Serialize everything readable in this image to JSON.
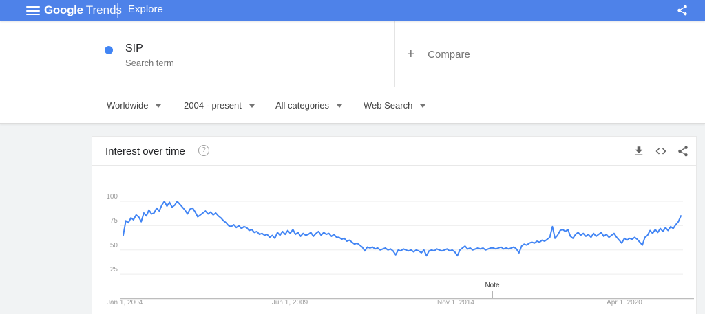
{
  "header": {
    "logo_primary": "Google",
    "logo_secondary": "Trends",
    "nav_title": "Explore"
  },
  "icons": {
    "menu": "hamburger-icon",
    "header_share": "share-icon",
    "help": "?",
    "download": "download-icon",
    "embed": "embed-code-icon",
    "card_share": "share-icon",
    "dropdown": "caret-down-icon"
  },
  "term_card": {
    "term": "SIP",
    "type_label": "Search term"
  },
  "compare_card": {
    "plus": "+",
    "label": "Compare"
  },
  "filters": {
    "region": "Worldwide",
    "time": "2004 - present",
    "category": "All categories",
    "search_type": "Web Search"
  },
  "chart_card": {
    "title": "Interest over time"
  },
  "colors": {
    "header_blue": "#4e82e9",
    "accent_blue": "#4285f4",
    "gridline": "#eeeeee",
    "axis": "#bdbdbd",
    "page_bg": "#f1f3f4"
  },
  "chart_data": {
    "type": "line",
    "title": "Interest over time",
    "x_ticks": [
      "Jan 1, 2004",
      "Jun 1, 2009",
      "Nov 1, 2014",
      "Apr 1, 2020"
    ],
    "y_ticks": [
      100,
      75,
      50,
      25
    ],
    "ylim": [
      0,
      100
    ],
    "grid": true,
    "legend": "none",
    "annotation": {
      "label": "Note"
    },
    "series": [
      {
        "name": "SIP",
        "color": "#4285f4",
        "values": [
          65,
          80,
          78,
          83,
          81,
          86,
          84,
          79,
          88,
          85,
          91,
          87,
          88,
          93,
          90,
          96,
          100,
          95,
          99,
          94,
          96,
          100,
          97,
          94,
          91,
          87,
          92,
          93,
          89,
          84,
          86,
          88,
          90,
          87,
          89,
          86,
          88,
          85,
          83,
          80,
          78,
          75,
          74,
          76,
          73,
          75,
          72,
          74,
          73,
          70,
          71,
          68,
          69,
          66,
          67,
          65,
          66,
          63,
          65,
          62,
          68,
          65,
          69,
          66,
          70,
          67,
          71,
          66,
          68,
          64,
          67,
          65,
          66,
          68,
          64,
          67,
          69,
          65,
          68,
          66,
          67,
          64,
          66,
          63,
          63,
          61,
          62,
          59,
          60,
          58,
          56,
          57,
          55,
          53,
          49,
          53,
          52,
          53,
          51,
          52,
          50,
          51,
          52,
          50,
          51,
          49,
          45,
          50,
          49,
          51,
          50,
          49,
          50,
          48,
          50,
          49,
          47,
          50,
          44,
          49,
          50,
          49,
          51,
          50,
          49,
          50,
          51,
          49,
          50,
          48,
          44,
          50,
          52,
          54,
          51,
          52,
          50,
          51,
          52,
          51,
          52,
          50,
          51,
          52,
          52,
          51,
          52,
          53,
          51,
          52,
          51,
          52,
          53,
          51,
          47,
          54,
          56,
          55,
          57,
          58,
          57,
          59,
          58,
          60,
          59,
          61,
          63,
          74,
          62,
          65,
          70,
          71,
          69,
          71,
          64,
          62,
          66,
          68,
          65,
          67,
          64,
          66,
          63,
          67,
          64,
          66,
          68,
          64,
          66,
          63,
          65,
          67,
          63,
          60,
          57,
          62,
          60,
          62,
          61,
          63,
          61,
          58,
          55,
          63,
          65,
          70,
          67,
          71,
          68,
          72,
          69,
          73,
          70,
          74,
          72,
          76,
          79,
          85
        ]
      }
    ]
  }
}
